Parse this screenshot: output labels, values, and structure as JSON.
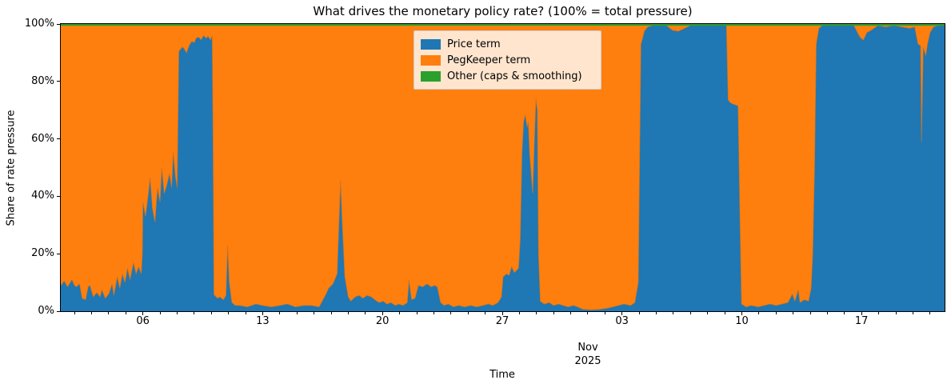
{
  "title": "What drives the monetary policy rate? (100% = total pressure)",
  "axes": {
    "ylabel": "Share of rate pressure",
    "xlabel": "Time",
    "yticks": [
      {
        "label": "0%",
        "value": 0
      },
      {
        "label": "20%",
        "value": 20
      },
      {
        "label": "40%",
        "value": 40
      },
      {
        "label": "60%",
        "value": 60
      },
      {
        "label": "80%",
        "value": 80
      },
      {
        "label": "100%",
        "value": 100
      }
    ],
    "xticks_major": [
      {
        "label": "06",
        "day": 5
      },
      {
        "label": "13",
        "day": 12
      },
      {
        "label": "20",
        "day": 19
      },
      {
        "label": "27",
        "day": 26
      },
      {
        "label": "03",
        "day": 33
      },
      {
        "label": "10",
        "day": 40
      },
      {
        "label": "17",
        "day": 47
      }
    ],
    "month_label": {
      "line1": "Nov",
      "line2": "2025",
      "day": 31
    }
  },
  "legend": {
    "items": [
      {
        "label": "Price term",
        "color": "#1f77b4"
      },
      {
        "label": "PegKeeper term",
        "color": "#ff7f0e"
      },
      {
        "label": "Other (caps & smoothing)",
        "color": "#2ca02c"
      }
    ]
  },
  "chart_data": {
    "type": "area",
    "stacked": true,
    "title": "What drives the monetary policy rate? (100% = total pressure)",
    "xlabel": "Time",
    "ylabel": "Share of rate pressure",
    "x_unit": "days since 2025-10-01 00:00",
    "xlim": [
      0.2,
      51.85
    ],
    "ylim": [
      0,
      100
    ],
    "grid": false,
    "legend_position": "upper center",
    "series": [
      {
        "name": "Price term",
        "color": "#1f77b4",
        "points": [
          [
            0.2,
            9
          ],
          [
            0.4,
            10.5
          ],
          [
            0.6,
            8.5
          ],
          [
            0.85,
            11
          ],
          [
            1.0,
            9
          ],
          [
            1.1,
            8.5
          ],
          [
            1.3,
            9.5
          ],
          [
            1.45,
            4.5
          ],
          [
            1.65,
            4
          ],
          [
            1.8,
            8.5
          ],
          [
            1.9,
            9
          ],
          [
            2.1,
            5
          ],
          [
            2.3,
            6.5
          ],
          [
            2.5,
            5
          ],
          [
            2.6,
            7.5
          ],
          [
            2.8,
            4.5
          ],
          [
            3.0,
            6
          ],
          [
            3.2,
            9.5
          ],
          [
            3.3,
            5.5
          ],
          [
            3.5,
            12
          ],
          [
            3.65,
            8
          ],
          [
            3.8,
            13
          ],
          [
            3.95,
            10
          ],
          [
            4.1,
            15
          ],
          [
            4.25,
            11
          ],
          [
            4.45,
            17
          ],
          [
            4.6,
            13
          ],
          [
            4.75,
            15.5
          ],
          [
            4.9,
            13
          ],
          [
            4.97,
            20
          ],
          [
            5.0,
            38
          ],
          [
            5.15,
            33
          ],
          [
            5.3,
            40
          ],
          [
            5.42,
            46.5
          ],
          [
            5.55,
            36
          ],
          [
            5.7,
            31
          ],
          [
            5.85,
            43
          ],
          [
            6.0,
            38
          ],
          [
            6.1,
            50
          ],
          [
            6.25,
            41
          ],
          [
            6.4,
            44
          ],
          [
            6.55,
            48
          ],
          [
            6.68,
            43
          ],
          [
            6.77,
            55.5
          ],
          [
            6.9,
            47
          ],
          [
            7.0,
            43
          ],
          [
            7.1,
            90.5
          ],
          [
            7.3,
            92
          ],
          [
            7.4,
            91.5
          ],
          [
            7.55,
            90
          ],
          [
            7.7,
            92.5
          ],
          [
            7.85,
            94
          ],
          [
            8.0,
            93.5
          ],
          [
            8.1,
            95
          ],
          [
            8.25,
            95.5
          ],
          [
            8.4,
            94.5
          ],
          [
            8.55,
            96
          ],
          [
            8.7,
            95
          ],
          [
            8.8,
            95.8
          ],
          [
            8.95,
            94.5
          ],
          [
            9.05,
            96
          ],
          [
            9.1,
            60
          ],
          [
            9.15,
            5.8
          ],
          [
            9.35,
            4.5
          ],
          [
            9.5,
            5
          ],
          [
            9.7,
            4
          ],
          [
            9.85,
            5.5
          ],
          [
            9.95,
            23
          ],
          [
            10.05,
            10
          ],
          [
            10.2,
            3
          ],
          [
            10.4,
            2
          ],
          [
            10.65,
            2
          ],
          [
            11.1,
            1.5
          ],
          [
            11.6,
            2.5
          ],
          [
            12.0,
            2
          ],
          [
            12.5,
            1.5
          ],
          [
            13.0,
            2
          ],
          [
            13.45,
            2.5
          ],
          [
            13.9,
            1.5
          ],
          [
            14.4,
            2
          ],
          [
            14.85,
            2
          ],
          [
            15.3,
            1.5
          ],
          [
            15.7,
            6
          ],
          [
            15.85,
            8
          ],
          [
            16.1,
            9.5
          ],
          [
            16.35,
            13
          ],
          [
            16.45,
            30
          ],
          [
            16.55,
            45.5
          ],
          [
            16.65,
            31
          ],
          [
            16.8,
            12
          ],
          [
            17.0,
            5
          ],
          [
            17.15,
            3.5
          ],
          [
            17.4,
            5
          ],
          [
            17.65,
            5.5
          ],
          [
            17.85,
            4.5
          ],
          [
            18.1,
            5.5
          ],
          [
            18.35,
            5
          ],
          [
            18.55,
            4
          ],
          [
            18.8,
            3
          ],
          [
            19.05,
            3.5
          ],
          [
            19.25,
            2.5
          ],
          [
            19.5,
            3
          ],
          [
            19.75,
            2
          ],
          [
            19.95,
            2.5
          ],
          [
            20.2,
            2
          ],
          [
            20.45,
            3
          ],
          [
            20.55,
            10.9
          ],
          [
            20.7,
            4
          ],
          [
            20.9,
            4.5
          ],
          [
            21.1,
            9
          ],
          [
            21.35,
            8.5
          ],
          [
            21.6,
            9.5
          ],
          [
            21.85,
            8.5
          ],
          [
            22.05,
            9
          ],
          [
            22.2,
            8.5
          ],
          [
            22.4,
            3
          ],
          [
            22.6,
            2
          ],
          [
            22.85,
            2.5
          ],
          [
            23.15,
            1.5
          ],
          [
            23.45,
            2
          ],
          [
            23.8,
            1.5
          ],
          [
            24.15,
            2
          ],
          [
            24.5,
            1.5
          ],
          [
            24.85,
            2
          ],
          [
            25.2,
            2.5
          ],
          [
            25.45,
            2
          ],
          [
            25.75,
            3
          ],
          [
            25.95,
            5
          ],
          [
            26.05,
            12
          ],
          [
            26.25,
            13
          ],
          [
            26.4,
            12.5
          ],
          [
            26.55,
            15.5
          ],
          [
            26.7,
            13.5
          ],
          [
            26.8,
            14
          ],
          [
            26.95,
            15
          ],
          [
            27.05,
            25
          ],
          [
            27.15,
            55
          ],
          [
            27.25,
            66
          ],
          [
            27.35,
            68.5
          ],
          [
            27.45,
            64
          ],
          [
            27.52,
            66
          ],
          [
            27.6,
            55
          ],
          [
            27.78,
            41
          ],
          [
            27.88,
            60
          ],
          [
            27.97,
            74
          ],
          [
            28.05,
            70
          ],
          [
            28.12,
            20
          ],
          [
            28.22,
            3.5
          ],
          [
            28.45,
            2.5
          ],
          [
            28.75,
            3
          ],
          [
            29.0,
            2
          ],
          [
            29.3,
            2.5
          ],
          [
            29.55,
            2
          ],
          [
            29.85,
            1.5
          ],
          [
            30.15,
            2
          ],
          [
            30.4,
            1.5
          ],
          [
            30.7,
            0.7
          ],
          [
            31.15,
            0.5
          ],
          [
            31.6,
            0.6
          ],
          [
            32.1,
            1
          ],
          [
            32.45,
            1.5
          ],
          [
            32.8,
            2
          ],
          [
            33.1,
            2.5
          ],
          [
            33.5,
            2
          ],
          [
            33.75,
            3
          ],
          [
            33.95,
            10
          ],
          [
            34.1,
            93
          ],
          [
            34.2,
            95
          ],
          [
            34.3,
            97.5
          ],
          [
            34.5,
            99
          ],
          [
            34.8,
            99.5
          ],
          [
            35.1,
            100
          ],
          [
            35.6,
            99.5
          ],
          [
            35.95,
            97.8
          ],
          [
            36.3,
            97.5
          ],
          [
            36.65,
            98.5
          ],
          [
            37.0,
            99.5
          ],
          [
            37.45,
            100
          ],
          [
            37.9,
            100
          ],
          [
            38.4,
            99.5
          ],
          [
            38.85,
            100
          ],
          [
            39.1,
            99.5
          ],
          [
            39.2,
            73.5
          ],
          [
            39.35,
            72.5
          ],
          [
            39.55,
            72
          ],
          [
            39.78,
            71.5
          ],
          [
            39.9,
            30
          ],
          [
            39.98,
            2.5
          ],
          [
            40.25,
            1.5
          ],
          [
            40.55,
            2
          ],
          [
            40.95,
            1.5
          ],
          [
            41.3,
            2
          ],
          [
            41.65,
            2.5
          ],
          [
            42.0,
            2
          ],
          [
            42.35,
            2.5
          ],
          [
            42.7,
            3
          ],
          [
            42.95,
            6
          ],
          [
            43.1,
            3.5
          ],
          [
            43.3,
            7.5
          ],
          [
            43.4,
            3
          ],
          [
            43.65,
            4
          ],
          [
            43.9,
            3.5
          ],
          [
            44.05,
            8
          ],
          [
            44.14,
            19.8
          ],
          [
            44.25,
            50
          ],
          [
            44.35,
            93
          ],
          [
            44.5,
            98.5
          ],
          [
            44.7,
            99.5
          ],
          [
            45.15,
            100
          ],
          [
            45.6,
            99.5
          ],
          [
            46.1,
            100
          ],
          [
            46.55,
            99.5
          ],
          [
            46.9,
            95.5
          ],
          [
            47.1,
            94.4
          ],
          [
            47.3,
            97
          ],
          [
            47.6,
            98
          ],
          [
            47.95,
            99.5
          ],
          [
            48.4,
            99
          ],
          [
            48.9,
            99.5
          ],
          [
            49.35,
            99
          ],
          [
            49.8,
            98.5
          ],
          [
            50.1,
            99
          ],
          [
            50.3,
            93
          ],
          [
            50.45,
            92.5
          ],
          [
            50.5,
            59
          ],
          [
            50.6,
            92
          ],
          [
            50.75,
            89
          ],
          [
            50.85,
            93
          ],
          [
            51.0,
            97
          ],
          [
            51.2,
            99
          ],
          [
            51.5,
            99.5
          ],
          [
            51.85,
            100
          ]
        ]
      },
      {
        "name": "PegKeeper term",
        "color": "#ff7f0e",
        "derived": "remainder_to_100_percent"
      },
      {
        "name": "Other (caps & smoothing)",
        "color": "#2ca02c",
        "approx_constant_pct": 0.6
      }
    ]
  }
}
